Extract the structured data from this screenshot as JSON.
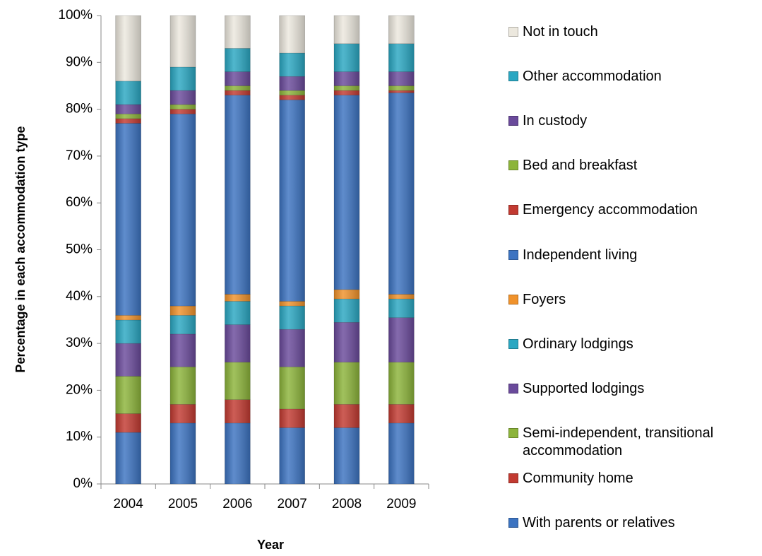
{
  "chart_data": {
    "type": "stacked-bar",
    "x_label": "Year",
    "y_label": "Percentage in each accommodation type",
    "categories": [
      "2004",
      "2005",
      "2006",
      "2007",
      "2008",
      "2009"
    ],
    "series": [
      {
        "name": "With parents or relatives",
        "color": "#3c73c1",
        "values": [
          11,
          13,
          13,
          12,
          12,
          13
        ]
      },
      {
        "name": "Community home",
        "color": "#c23a31",
        "values": [
          4,
          4,
          5,
          4,
          5,
          4
        ]
      },
      {
        "name": "Semi-independent, transitional accommodation",
        "color": "#8cb43a",
        "values": [
          8,
          8,
          8,
          9,
          9,
          9
        ]
      },
      {
        "name": "Supported lodgings",
        "color": "#6a4a9b",
        "values": [
          7,
          7,
          8,
          8,
          8.5,
          9.5
        ]
      },
      {
        "name": "Ordinary lodgings",
        "color": "#2aa7c2",
        "values": [
          5,
          4,
          5,
          5,
          5,
          4
        ]
      },
      {
        "name": "Foyers",
        "color": "#f0922b",
        "values": [
          1,
          2,
          1.5,
          1,
          2,
          1
        ]
      },
      {
        "name": "Independent living",
        "color": "#3c73c1",
        "values": [
          41,
          41,
          42.5,
          43,
          41.5,
          43
        ]
      },
      {
        "name": "Emergency accommodation",
        "color": "#c23a31",
        "values": [
          1,
          1,
          1,
          1,
          1,
          0.5
        ]
      },
      {
        "name": "Bed and breakfast",
        "color": "#8cb43a",
        "values": [
          1,
          1,
          1,
          1,
          1,
          1
        ]
      },
      {
        "name": "In custody",
        "color": "#6a4a9b",
        "values": [
          2,
          3,
          3,
          3,
          3,
          3
        ]
      },
      {
        "name": "Other accommodation",
        "color": "#2aa7c2",
        "values": [
          5,
          5,
          5,
          5,
          6,
          6
        ]
      },
      {
        "name": "Not in touch",
        "color": "#ece8de",
        "values": [
          14,
          11,
          7,
          8,
          6,
          6
        ]
      }
    ],
    "ylim": [
      0,
      100
    ],
    "yticks": [
      {
        "value": 0,
        "label": "0%"
      },
      {
        "value": 10,
        "label": "10%"
      },
      {
        "value": 20,
        "label": "20%"
      },
      {
        "value": 30,
        "label": "30%"
      },
      {
        "value": 40,
        "label": "40%"
      },
      {
        "value": 50,
        "label": "50%"
      },
      {
        "value": 60,
        "label": "60%"
      },
      {
        "value": 70,
        "label": "70%"
      },
      {
        "value": 80,
        "label": "80%"
      },
      {
        "value": 90,
        "label": "90%"
      },
      {
        "value": 100,
        "label": "100%"
      }
    ],
    "legend": "right"
  }
}
